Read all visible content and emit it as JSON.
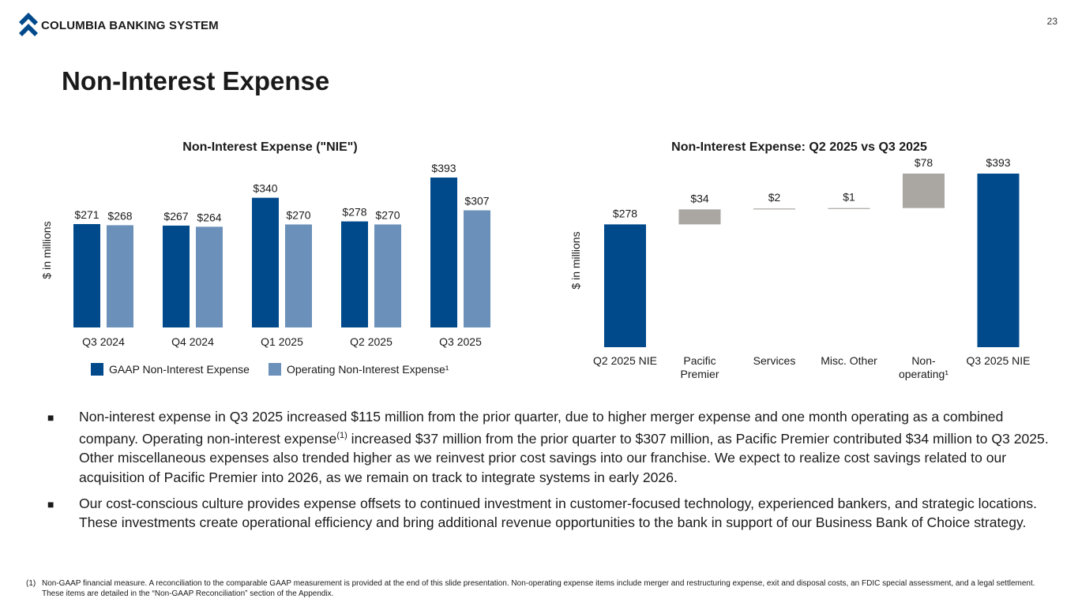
{
  "header": {
    "brand": "COLUMBIA BANKING SYSTEM",
    "page_number": "23",
    "title": "Non-Interest Expense"
  },
  "colors": {
    "gaap": "#004a8c",
    "operating": "#6b90ba",
    "waterfall_step": "#aaa6a2",
    "total": "#004a8c"
  },
  "chart_data": [
    {
      "type": "bar",
      "title": "Non-Interest Expense (\"NIE\")",
      "ylabel": "$ in millions",
      "xlabel": "",
      "categories": [
        "Q3 2024",
        "Q4 2024",
        "Q1 2025",
        "Q2 2025",
        "Q3 2025"
      ],
      "series": [
        {
          "name": "GAAP Non-Interest Expense",
          "values": [
            271,
            267,
            340,
            278,
            393
          ],
          "labels": [
            "$271",
            "$267",
            "$340",
            "$278",
            "$393"
          ]
        },
        {
          "name": "Operating Non-Interest Expense¹",
          "values": [
            268,
            264,
            270,
            270,
            307
          ],
          "labels": [
            "$268",
            "$264",
            "$270",
            "$270",
            "$307"
          ]
        }
      ],
      "ylim": [
        0,
        393
      ]
    },
    {
      "type": "waterfall",
      "title": "Non-Interest Expense: Q2 2025 vs Q3 2025",
      "ylabel": "$ in millions",
      "categories": [
        "Q2 2025 NIE",
        "Pacific Premier",
        "Services",
        "Misc. Other",
        "Non-operating¹",
        "Q3 2025 NIE"
      ],
      "category_lines": [
        [
          "Q2 2025 NIE"
        ],
        [
          "Pacific",
          "Premier"
        ],
        [
          "Services"
        ],
        [
          "Misc. Other"
        ],
        [
          "Non-",
          "operating¹"
        ],
        [
          "Q3 2025 NIE"
        ]
      ],
      "values": [
        278,
        34,
        2,
        1,
        78,
        393
      ],
      "kinds": [
        "total",
        "step",
        "step",
        "step",
        "step",
        "total"
      ],
      "labels": [
        "$278",
        "$34",
        "$2",
        "$1",
        "$78",
        "$393"
      ],
      "ylim": [
        0,
        393
      ]
    }
  ],
  "legend": {
    "gaap": "GAAP Non-Interest Expense",
    "operating": "Operating Non-Interest Expense¹"
  },
  "bullets": {
    "b1_part1": "Non-interest expense in Q3 2025 increased $115 million from the prior quarter, due to higher merger expense and one month operating as a combined company. Operating non-interest expense",
    "b1_sup": "(1)",
    "b1_part2": " increased $37 million from the prior quarter to $307 million, as Pacific Premier contributed $34 million to Q3 2025. Other miscellaneous expenses also trended higher as we reinvest prior cost savings into our franchise. We expect to realize cost savings related to our acquisition of Pacific Premier into 2026, as we remain on track to integrate systems in early 2026.",
    "b2": "Our cost-conscious culture provides expense offsets to continued investment in customer-focused technology, experienced bankers, and strategic locations. These investments create operational efficiency and bring additional revenue opportunities to the bank in support of our Business Bank of Choice strategy.",
    "marker": "■"
  },
  "footnote": {
    "mark": "(1)",
    "text": "Non-GAAP financial measure. A reconciliation to the comparable GAAP measurement is provided at the end of this slide presentation. Non-operating expense items include merger and restructuring expense, exit and disposal costs, an FDIC special assessment, and a legal settlement. These items are detailed in the “Non-GAAP Reconciliation” section of the Appendix."
  }
}
